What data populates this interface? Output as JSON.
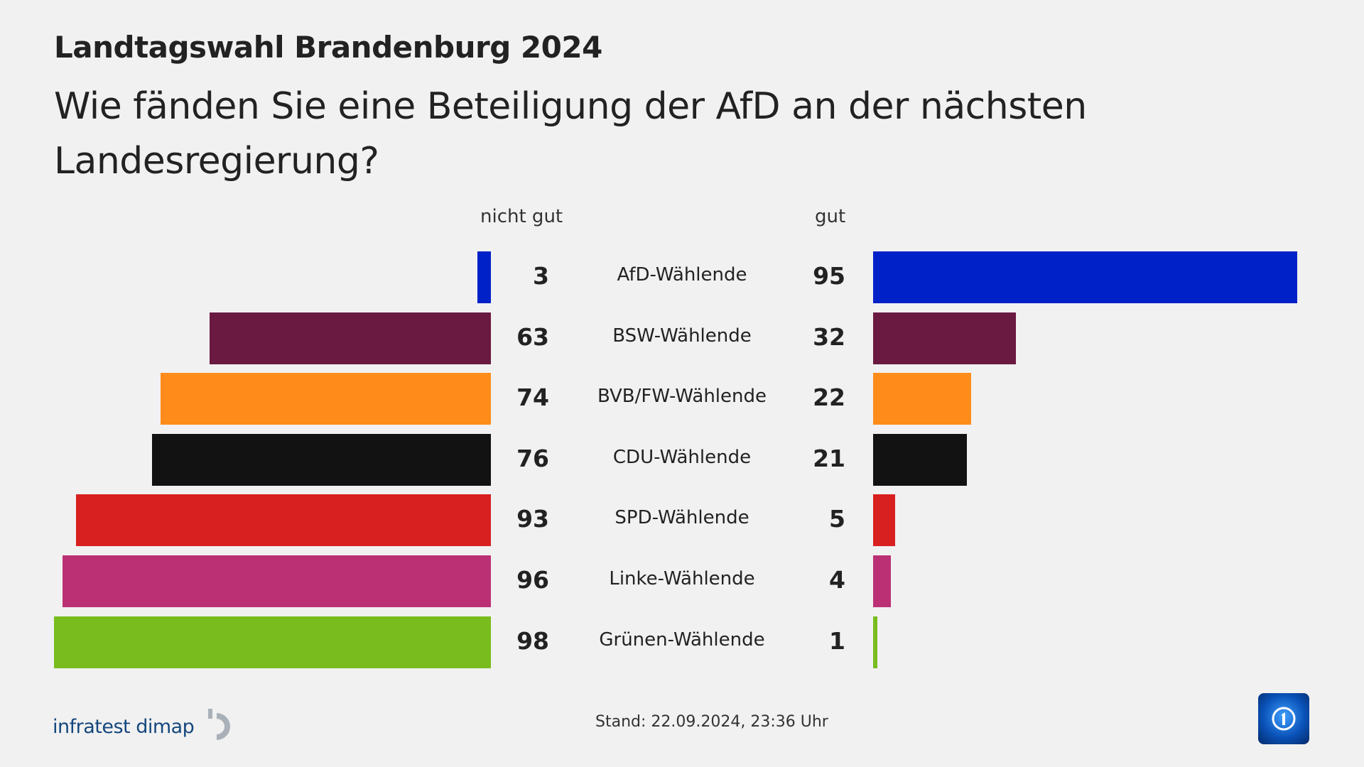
{
  "header": {
    "title": "Landtagswahl Brandenburg 2024",
    "question": "Wie fänden Sie eine Beteiligung der AfD an der nächsten Landesregierung?"
  },
  "chart_data": {
    "type": "bar",
    "orientation": "diverging-horizontal",
    "categories": [
      "AfD-Wählende",
      "BSW-Wählende",
      "BVB/FW-Wählende",
      "CDU-Wählende",
      "SPD-Wählende",
      "Linke-Wählende",
      "Grünen-Wählende"
    ],
    "series": [
      {
        "name": "nicht gut",
        "values": [
          3,
          63,
          74,
          76,
          93,
          96,
          98
        ]
      },
      {
        "name": "gut",
        "values": [
          95,
          32,
          22,
          21,
          5,
          4,
          1
        ]
      }
    ],
    "colors": [
      "#0021c8",
      "#6a1a41",
      "#ff8c1a",
      "#121212",
      "#d92020",
      "#bb3074",
      "#78bd1d"
    ],
    "xlim": [
      0,
      100
    ],
    "grid": false
  },
  "footer": {
    "source": "infratest dimap",
    "stand": "Stand:  22.09.2024, 23:36 Uhr",
    "broadcaster_logo": "ard-tagesschau-logo"
  }
}
